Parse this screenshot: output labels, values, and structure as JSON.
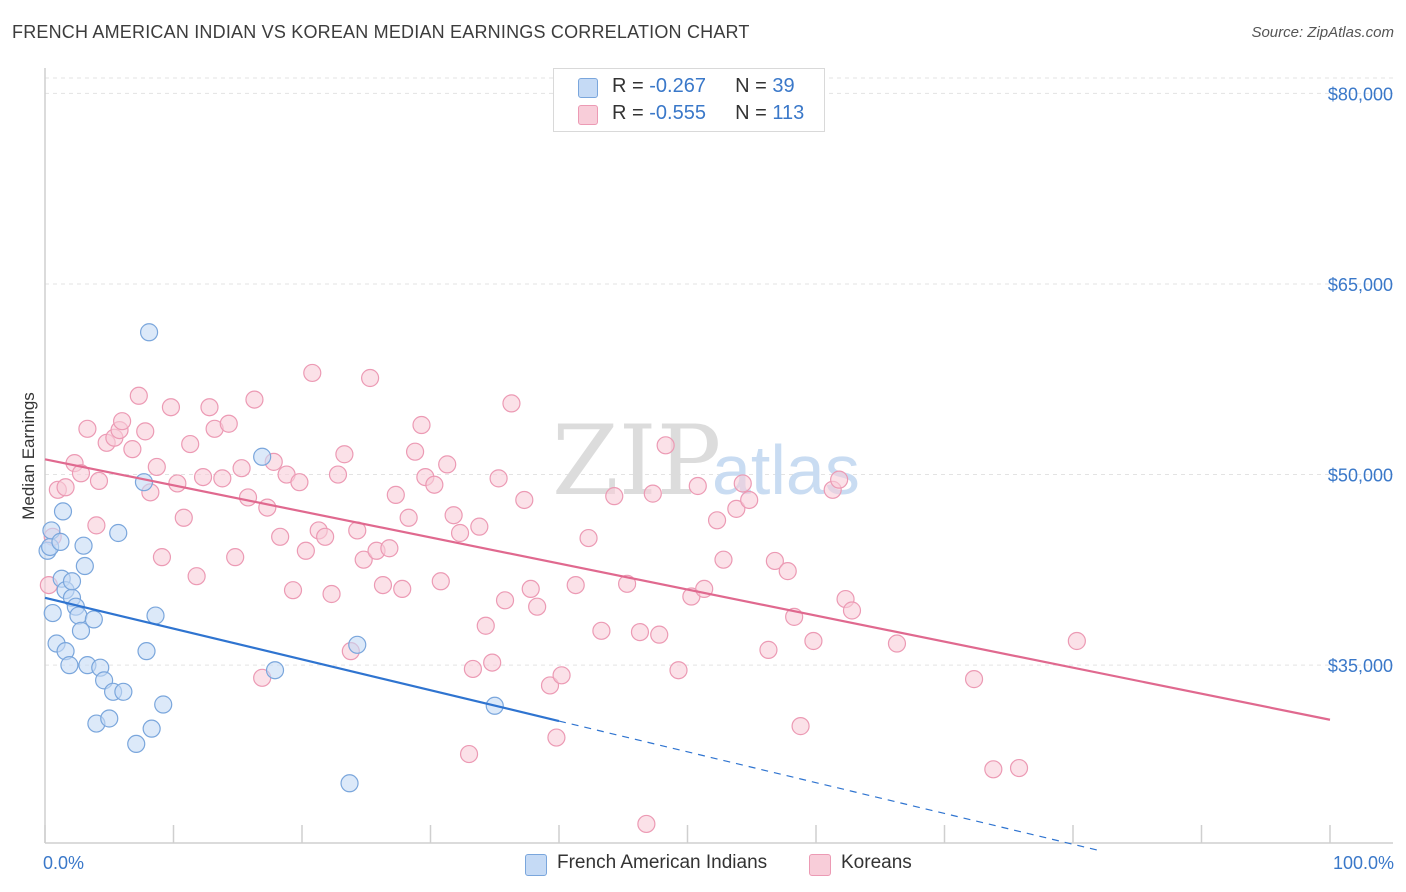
{
  "header": {
    "title": "FRENCH AMERICAN INDIAN VS KOREAN MEDIAN EARNINGS CORRELATION CHART",
    "source": "Source: ZipAtlas.com"
  },
  "watermark": {
    "zip": "ZIP",
    "atlas": "atlas"
  },
  "legend": {
    "rows": [
      {
        "r_label": "R = ",
        "r_value": "-0.267",
        "n_label": "N = ",
        "n_value": "39",
        "color": "#aecbf0"
      },
      {
        "r_label": "R = ",
        "r_value": "-0.555",
        "n_label": "N = ",
        "n_value": "113",
        "color": "#f5b8cb"
      }
    ]
  },
  "bottom_legend": {
    "items": [
      {
        "label": "French American Indians",
        "color": "#aecbf0"
      },
      {
        "label": "Koreans",
        "color": "#f5b8cb"
      }
    ]
  },
  "colors": {
    "blue_fill": "#c5daf5",
    "blue_stroke": "#7aa6dc",
    "blue_line": "#2f74d0",
    "pink_fill": "#f8cdd9",
    "pink_stroke": "#ec9ab4",
    "pink_line": "#e0698f",
    "axis_text": "#3a78c9",
    "grid": "#e3e3e3"
  },
  "chart_data": {
    "type": "scatter",
    "title": "FRENCH AMERICAN INDIAN VS KOREAN MEDIAN EARNINGS CORRELATION CHART",
    "xlabel": "",
    "ylabel": "Median Earnings",
    "xlim": [
      0,
      100
    ],
    "ylim": [
      21000,
      82000
    ],
    "x_tick_labels": [
      "0.0%",
      "100.0%"
    ],
    "y_ticks": [
      35000,
      50000,
      65000,
      80000
    ],
    "y_tick_labels": [
      "$35,000",
      "$50,000",
      "$65,000",
      "$80,000"
    ],
    "grid": true,
    "legend_position": "top-center",
    "series": [
      {
        "name": "French American Indians",
        "r": -0.267,
        "n": 39,
        "trend": {
          "x0": 0,
          "y0": 40300,
          "x1": 40,
          "y1": 30600,
          "dashed_to_x": 82
        },
        "points": [
          [
            0.2,
            44000
          ],
          [
            0.4,
            44300
          ],
          [
            0.5,
            45600
          ],
          [
            0.6,
            39100
          ],
          [
            0.9,
            36700
          ],
          [
            1.2,
            44700
          ],
          [
            1.3,
            41800
          ],
          [
            1.4,
            47100
          ],
          [
            1.6,
            36100
          ],
          [
            1.6,
            40900
          ],
          [
            1.9,
            35000
          ],
          [
            2.1,
            40300
          ],
          [
            2.1,
            41600
          ],
          [
            2.4,
            39600
          ],
          [
            2.6,
            38900
          ],
          [
            2.8,
            37700
          ],
          [
            3.0,
            44400
          ],
          [
            3.1,
            42800
          ],
          [
            3.3,
            35000
          ],
          [
            3.8,
            38600
          ],
          [
            4.0,
            30400
          ],
          [
            4.3,
            34800
          ],
          [
            4.6,
            33800
          ],
          [
            5.0,
            30800
          ],
          [
            5.3,
            32900
          ],
          [
            5.7,
            45400
          ],
          [
            6.1,
            32900
          ],
          [
            7.1,
            28800
          ],
          [
            7.7,
            49400
          ],
          [
            7.9,
            36100
          ],
          [
            8.1,
            61200
          ],
          [
            8.3,
            30000
          ],
          [
            8.6,
            38900
          ],
          [
            9.2,
            31900
          ],
          [
            16.9,
            51400
          ],
          [
            17.9,
            34600
          ],
          [
            23.7,
            25700
          ],
          [
            24.3,
            36600
          ],
          [
            35.0,
            31800
          ]
        ]
      },
      {
        "name": "Koreans",
        "r": -0.555,
        "n": 113,
        "trend": {
          "x0": 0,
          "y0": 51200,
          "x1": 100,
          "y1": 30700
        },
        "points": [
          [
            0.3,
            41300
          ],
          [
            0.6,
            45100
          ],
          [
            1.0,
            48800
          ],
          [
            1.6,
            49000
          ],
          [
            2.3,
            50900
          ],
          [
            2.8,
            50100
          ],
          [
            3.3,
            53600
          ],
          [
            4.0,
            46000
          ],
          [
            4.2,
            49500
          ],
          [
            4.8,
            52500
          ],
          [
            5.4,
            52900
          ],
          [
            5.8,
            53500
          ],
          [
            6.0,
            54200
          ],
          [
            6.8,
            52000
          ],
          [
            7.3,
            56200
          ],
          [
            7.8,
            53400
          ],
          [
            8.2,
            48600
          ],
          [
            8.7,
            50600
          ],
          [
            9.1,
            43500
          ],
          [
            9.8,
            55300
          ],
          [
            10.3,
            49300
          ],
          [
            10.8,
            46600
          ],
          [
            11.3,
            52400
          ],
          [
            11.8,
            42000
          ],
          [
            12.3,
            49800
          ],
          [
            12.8,
            55300
          ],
          [
            13.2,
            53600
          ],
          [
            13.8,
            49700
          ],
          [
            14.3,
            54000
          ],
          [
            14.8,
            43500
          ],
          [
            15.3,
            50500
          ],
          [
            15.8,
            48200
          ],
          [
            16.3,
            55900
          ],
          [
            16.9,
            34000
          ],
          [
            17.3,
            47400
          ],
          [
            17.8,
            51000
          ],
          [
            18.3,
            45100
          ],
          [
            18.8,
            50000
          ],
          [
            19.3,
            40900
          ],
          [
            19.8,
            49400
          ],
          [
            20.3,
            44000
          ],
          [
            20.8,
            58000
          ],
          [
            21.3,
            45600
          ],
          [
            21.8,
            45100
          ],
          [
            22.3,
            40600
          ],
          [
            22.8,
            50000
          ],
          [
            23.3,
            51600
          ],
          [
            23.8,
            36100
          ],
          [
            24.3,
            45600
          ],
          [
            24.8,
            43300
          ],
          [
            25.3,
            57600
          ],
          [
            25.8,
            44000
          ],
          [
            26.3,
            41300
          ],
          [
            26.8,
            44200
          ],
          [
            27.3,
            48400
          ],
          [
            27.8,
            41000
          ],
          [
            28.3,
            46600
          ],
          [
            28.8,
            51800
          ],
          [
            29.3,
            53900
          ],
          [
            29.6,
            49800
          ],
          [
            30.3,
            49200
          ],
          [
            30.8,
            41600
          ],
          [
            31.3,
            50800
          ],
          [
            31.8,
            46800
          ],
          [
            32.3,
            45400
          ],
          [
            33.0,
            28000
          ],
          [
            33.3,
            34700
          ],
          [
            33.8,
            45900
          ],
          [
            34.3,
            38100
          ],
          [
            34.8,
            35200
          ],
          [
            35.3,
            49700
          ],
          [
            35.8,
            40100
          ],
          [
            36.3,
            55600
          ],
          [
            37.3,
            48000
          ],
          [
            37.8,
            41000
          ],
          [
            38.3,
            39600
          ],
          [
            39.3,
            33400
          ],
          [
            39.8,
            29300
          ],
          [
            40.2,
            34200
          ],
          [
            41.3,
            41300
          ],
          [
            42.3,
            45000
          ],
          [
            43.3,
            37700
          ],
          [
            44.3,
            48300
          ],
          [
            45.3,
            41400
          ],
          [
            46.3,
            37600
          ],
          [
            46.8,
            22500
          ],
          [
            47.3,
            48500
          ],
          [
            47.8,
            37400
          ],
          [
            48.3,
            52300
          ],
          [
            49.3,
            34600
          ],
          [
            50.3,
            40400
          ],
          [
            50.8,
            49100
          ],
          [
            51.3,
            41000
          ],
          [
            52.3,
            46400
          ],
          [
            52.8,
            43300
          ],
          [
            53.8,
            47300
          ],
          [
            54.3,
            49300
          ],
          [
            54.8,
            48000
          ],
          [
            56.3,
            36200
          ],
          [
            56.8,
            43200
          ],
          [
            57.8,
            42400
          ],
          [
            58.3,
            38800
          ],
          [
            58.8,
            30200
          ],
          [
            59.8,
            36900
          ],
          [
            61.3,
            48800
          ],
          [
            61.8,
            49600
          ],
          [
            62.3,
            40200
          ],
          [
            62.8,
            39300
          ],
          [
            66.3,
            36700
          ],
          [
            72.3,
            33900
          ],
          [
            73.8,
            26800
          ],
          [
            75.8,
            26900
          ],
          [
            80.3,
            36900
          ]
        ]
      }
    ]
  }
}
